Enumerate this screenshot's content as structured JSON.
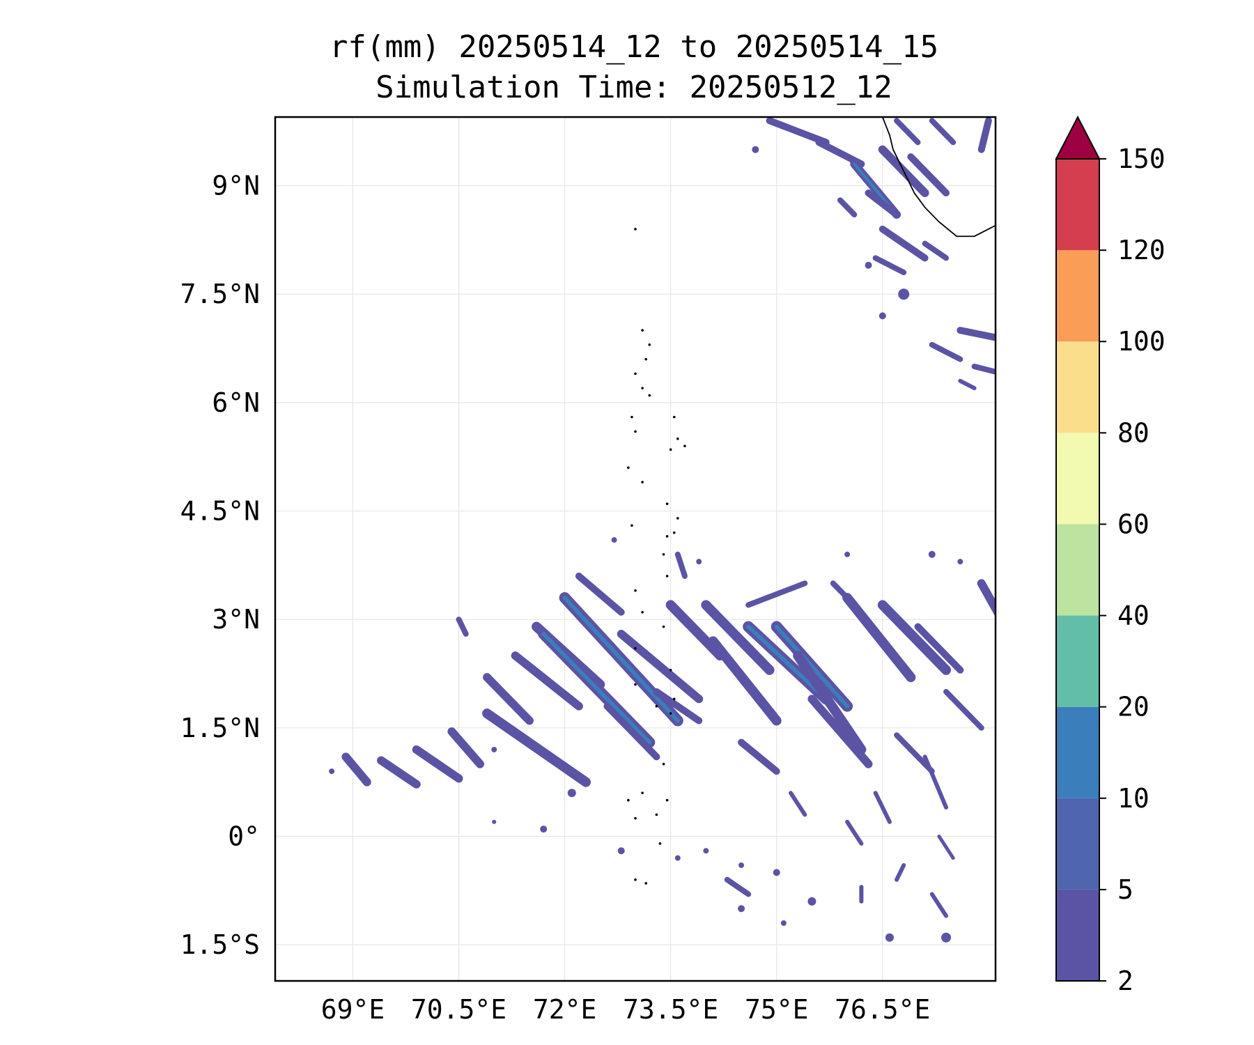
{
  "title_line1": "rf(mm) 20250514_12 to 20250514_15",
  "title_line2": "Simulation Time: 20250512_12",
  "map": {
    "lon_range": [
      67.9,
      78.1
    ],
    "lat_range": [
      -2.0,
      9.95
    ],
    "x_ticks": [
      {
        "value": 69,
        "label": "69°E"
      },
      {
        "value": 70.5,
        "label": "70.5°E"
      },
      {
        "value": 72,
        "label": "72°E"
      },
      {
        "value": 73.5,
        "label": "73.5°E"
      },
      {
        "value": 75,
        "label": "75°E"
      },
      {
        "value": 76.5,
        "label": "76.5°E"
      }
    ],
    "y_ticks": [
      {
        "value": 9,
        "label": "9°N"
      },
      {
        "value": 7.5,
        "label": "7.5°N"
      },
      {
        "value": 6,
        "label": "6°N"
      },
      {
        "value": 4.5,
        "label": "4.5°N"
      },
      {
        "value": 3,
        "label": "3°N"
      },
      {
        "value": 1.5,
        "label": "1.5°N"
      },
      {
        "value": 0,
        "label": "0°"
      },
      {
        "value": -1.5,
        "label": "1.5°S"
      }
    ],
    "grid": true
  },
  "colorbar": {
    "levels": [
      "2",
      "5",
      "10",
      "20",
      "40",
      "60",
      "80",
      "100",
      "120",
      "150"
    ],
    "colors": [
      "#5b54a4",
      "#4f65ae",
      "#3a7ebb",
      "#63bea8",
      "#bde3a0",
      "#f2f9b0",
      "#fbde8c",
      "#f99d57",
      "#d53e4f",
      "#9e0142"
    ],
    "extend": "max"
  },
  "colors": {
    "rain_light": "#5b54a4",
    "rain_mid": "#4f65ae",
    "rain_core": "#3a7ebb"
  }
}
